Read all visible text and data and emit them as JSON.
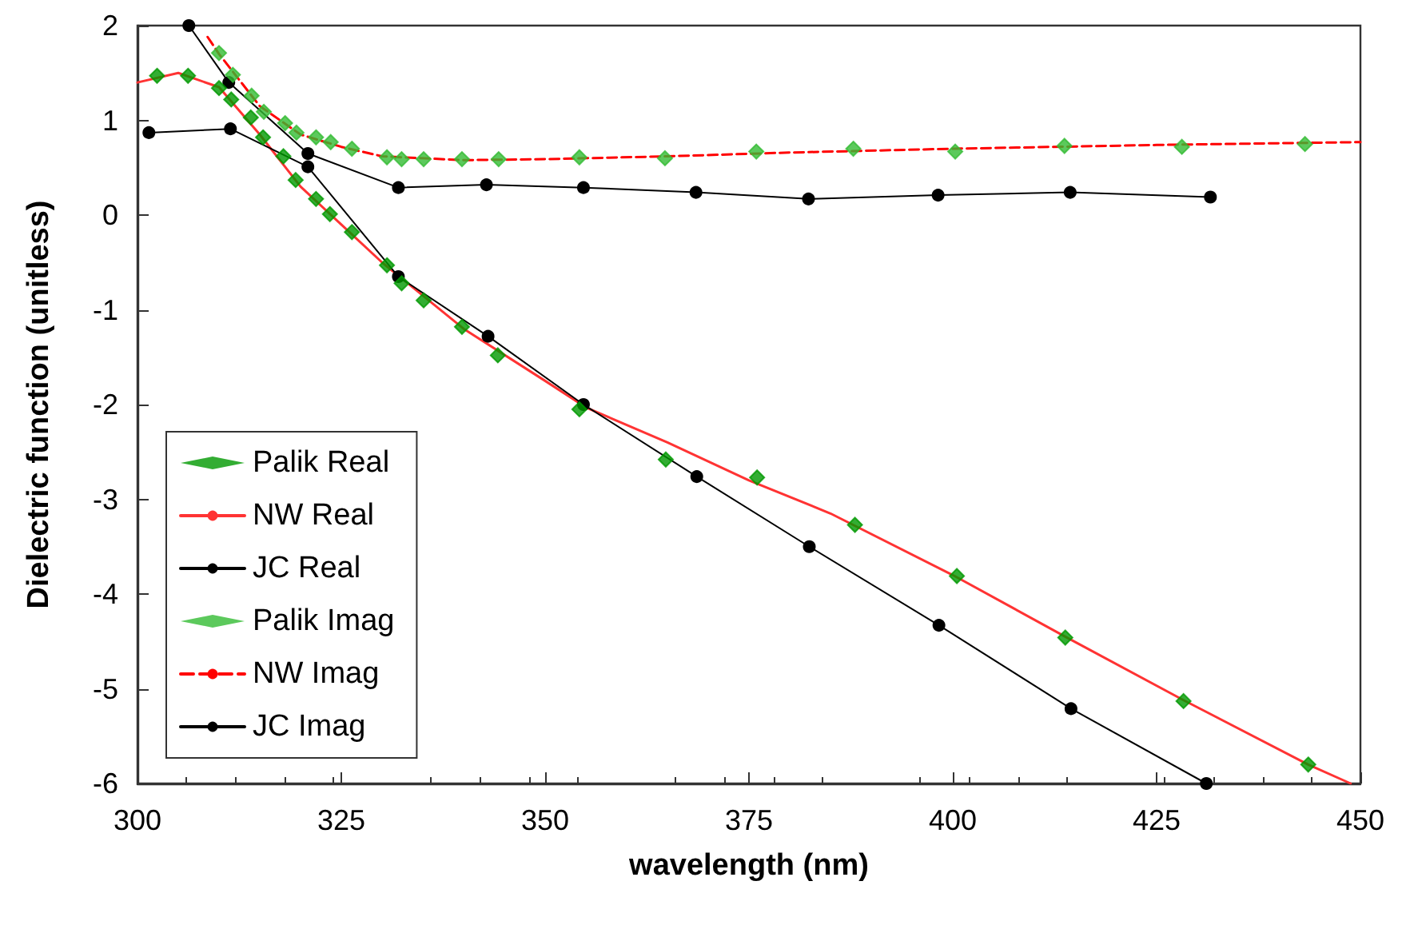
{
  "chart_data": {
    "type": "line",
    "xlabel": "wavelength (nm)",
    "ylabel": "Dielectric function (unitless)",
    "xlim": [
      300,
      450
    ],
    "xticks": [
      300,
      325,
      350,
      375,
      400,
      425,
      450
    ],
    "ylim": [
      -6,
      2
    ],
    "yticks": [
      -6,
      -5,
      -4,
      -3,
      -2,
      -1,
      0,
      1,
      2
    ],
    "grid": false,
    "legend": "bottom left",
    "series": [
      {
        "name": "Palik Real",
        "type": "scatter",
        "marker": "diamond",
        "color": "#009900",
        "x": [
          302.4,
          306.2,
          310,
          311.5,
          313.9,
          315.4,
          317.9,
          319.4,
          321.9,
          323.6,
          326.3,
          330.6,
          332.4,
          335.1,
          339.8,
          344.2,
          354.2,
          364.8,
          376,
          388,
          400.5,
          413.8,
          428.3,
          443.6
        ],
        "values": [
          1.47,
          1.47,
          1.34,
          1.22,
          1.03,
          0.82,
          0.62,
          0.37,
          0.17,
          0.01,
          -0.18,
          -0.53,
          -0.72,
          -0.9,
          -1.18,
          -1.48,
          -2.05,
          -2.58,
          -2.77,
          -3.27,
          -3.81,
          -4.46,
          -5.13,
          -5.8
        ]
      },
      {
        "name": "NW Real",
        "marker": "none",
        "line_style": "solid",
        "color": "#ff3333",
        "x": [
          300,
          305,
          310,
          315,
          320,
          325,
          330,
          340,
          350,
          355,
          365,
          375,
          385,
          400,
          413.8,
          428.3,
          443.6,
          448.8
        ],
        "values": [
          1.4,
          1.5,
          1.35,
          0.85,
          0.3,
          -0.1,
          -0.5,
          -1.2,
          -1.75,
          -2.03,
          -2.4,
          -2.8,
          -3.15,
          -3.8,
          -4.45,
          -5.12,
          -5.8,
          -6
        ]
      },
      {
        "name": "JC Real",
        "marker": "circle",
        "line_style": "solid",
        "color": "#000000",
        "x": [
          301.4,
          311.4,
          320.9,
          332,
          343,
          354.7,
          368.6,
          382.4,
          398.3,
          414.5,
          431.1
        ],
        "values": [
          0.87,
          0.91,
          0.51,
          -0.65,
          -1.28,
          -2,
          -2.76,
          -3.5,
          -4.33,
          -5.21,
          -6
        ]
      },
      {
        "name": "Palik Imag",
        "type": "scatter",
        "marker": "diamond",
        "color": "#33bb33",
        "x": [
          310,
          311.7,
          314,
          315.5,
          318.1,
          319.5,
          321.9,
          323.7,
          326.3,
          330.6,
          332.4,
          335.1,
          339.8,
          344.3,
          354.2,
          364.7,
          375.9,
          387.8,
          400.3,
          413.7,
          428.1,
          443.2
        ],
        "values": [
          1.71,
          1.48,
          1.26,
          1.09,
          0.97,
          0.87,
          0.82,
          0.77,
          0.7,
          0.61,
          0.59,
          0.59,
          0.59,
          0.59,
          0.61,
          0.6,
          0.67,
          0.7,
          0.67,
          0.73,
          0.72,
          0.75
        ]
      },
      {
        "name": "NW Imag",
        "marker": "none",
        "line_style": "dashed",
        "color": "#ff0000",
        "x": [
          308.6,
          310,
          315,
          320,
          325,
          330,
          340,
          350,
          365,
          380,
          400,
          425,
          450
        ],
        "values": [
          1.88,
          1.7,
          1.15,
          0.85,
          0.72,
          0.62,
          0.58,
          0.59,
          0.62,
          0.66,
          0.7,
          0.74,
          0.77
        ]
      },
      {
        "name": "JC Imag",
        "marker": "circle",
        "line_style": "solid",
        "color": "#000000",
        "x": [
          306.3,
          311.2,
          320.9,
          332,
          342.8,
          354.7,
          368.5,
          382.3,
          398.2,
          414.4,
          431.6
        ],
        "values": [
          2,
          1.4,
          0.65,
          0.29,
          0.32,
          0.29,
          0.24,
          0.17,
          0.21,
          0.24,
          0.19
        ]
      }
    ]
  }
}
